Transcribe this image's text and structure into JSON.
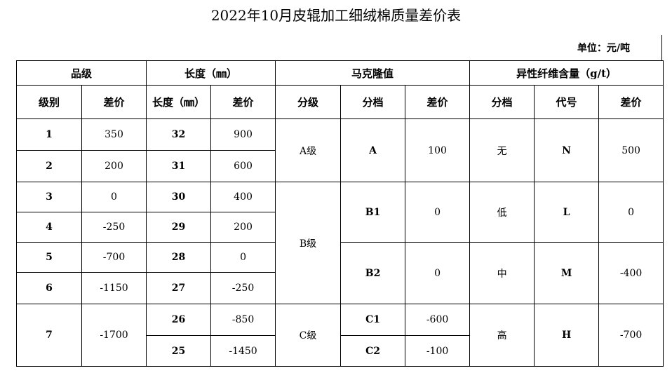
{
  "title": "2022年10月皮辊加工细绒棉质量差价表",
  "unit": "单位：元/吨",
  "groups": {
    "grade": "品级",
    "length": "长度（㎜）",
    "micronaire": "马克隆值",
    "foreign_fiber": "异性纤维含量（g/t）"
  },
  "subheaders": {
    "grade_level": "级别",
    "grade_diff": "差价",
    "length": "长度（㎜）",
    "length_diff": "差价",
    "mic_class": "分级",
    "mic_band": "分档",
    "mic_diff": "差价",
    "ff_band": "分档",
    "ff_code": "代号",
    "ff_diff": "差价"
  },
  "grade": [
    {
      "level": "1",
      "diff": "350"
    },
    {
      "level": "2",
      "diff": "200"
    },
    {
      "level": "3",
      "diff": "0"
    },
    {
      "level": "4",
      "diff": "-250"
    },
    {
      "level": "5",
      "diff": "-700"
    },
    {
      "level": "6",
      "diff": "-1150"
    },
    {
      "level": "7",
      "diff": "-1700"
    }
  ],
  "length": [
    {
      "len": "32",
      "diff": "900"
    },
    {
      "len": "31",
      "diff": "600"
    },
    {
      "len": "30",
      "diff": "400"
    },
    {
      "len": "29",
      "diff": "200"
    },
    {
      "len": "28",
      "diff": "0"
    },
    {
      "len": "27",
      "diff": "-250"
    },
    {
      "len": "26",
      "diff": "-850"
    },
    {
      "len": "25",
      "diff": "-1450"
    }
  ],
  "micronaire": {
    "classes": [
      "A级",
      "B级",
      "C级"
    ],
    "bands": [
      {
        "band": "A",
        "diff": "100"
      },
      {
        "band": "B1",
        "diff": "0"
      },
      {
        "band": "B2",
        "diff": "0"
      },
      {
        "band": "C1",
        "diff": "-600"
      },
      {
        "band": "C2",
        "diff": "-100"
      }
    ]
  },
  "foreign_fiber": [
    {
      "band": "无",
      "code": "N",
      "diff": "500"
    },
    {
      "band": "低",
      "code": "L",
      "diff": "0"
    },
    {
      "band": "中",
      "code": "M",
      "diff": "-400"
    },
    {
      "band": "高",
      "code": "H",
      "diff": "-700"
    }
  ]
}
